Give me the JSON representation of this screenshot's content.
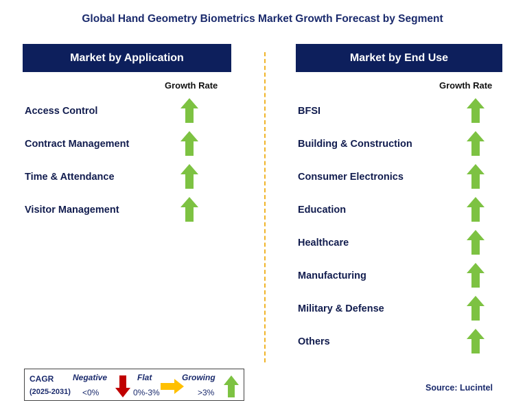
{
  "title": "Global Hand Geometry Biometrics Market Growth Forecast by Segment",
  "left_panel": {
    "header": "Market by Application",
    "growth_rate_label": "Growth Rate",
    "items": [
      {
        "label": "Access Control",
        "trend": "growing"
      },
      {
        "label": "Contract Management",
        "trend": "growing"
      },
      {
        "label": "Time & Attendance",
        "trend": "growing"
      },
      {
        "label": "Visitor Management",
        "trend": "growing"
      }
    ]
  },
  "right_panel": {
    "header": "Market by End Use",
    "growth_rate_label": "Growth Rate",
    "items": [
      {
        "label": "BFSI",
        "trend": "growing"
      },
      {
        "label": "Building & Construction",
        "trend": "growing"
      },
      {
        "label": "Consumer Electronics",
        "trend": "growing"
      },
      {
        "label": "Education",
        "trend": "growing"
      },
      {
        "label": "Healthcare",
        "trend": "growing"
      },
      {
        "label": "Manufacturing",
        "trend": "growing"
      },
      {
        "label": "Military & Defense",
        "trend": "growing"
      },
      {
        "label": "Others",
        "trend": "growing"
      }
    ]
  },
  "legend": {
    "cagr_label": "CAGR",
    "period": "(2025-2031)",
    "negative": {
      "label": "Negative",
      "range": "<0%"
    },
    "flat": {
      "label": "Flat",
      "range": "0%-3%"
    },
    "growing": {
      "label": "Growing",
      "range": ">3%"
    }
  },
  "source": "Source: Lucintel",
  "colors": {
    "header_bg": "#0d1f5c",
    "growing": "#7dc242",
    "negative": "#c00000",
    "flat": "#ffc000",
    "divider": "#f0b429"
  }
}
